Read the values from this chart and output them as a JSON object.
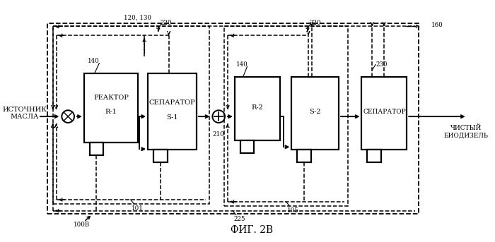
{
  "title": "ФИГ. 2В",
  "bg_color": "#ffffff",
  "source_label": "ИСТОЧНИК\nМАСЛА",
  "clean_label": "ЧИСТЫЙ\nБИОДИЗЕЛЬ",
  "reactor1_label": "РЕАКТОР\n\nR-1",
  "reactor2_label": "R-2",
  "sep1_label": "СЕПАРАТОР\n\nS-1",
  "sep2_label": "S-2",
  "sep3_label": "СЕПАРАТОР",
  "label_140a": "140",
  "label_220a": "220",
  "label_101": "101",
  "label_225": "225",
  "label_210": "210",
  "label_105": "105",
  "label_140b": "140",
  "label_220b": "220",
  "label_230": "230",
  "label_160": "160",
  "label_120_130": "120, 130",
  "label_100B": "100В"
}
